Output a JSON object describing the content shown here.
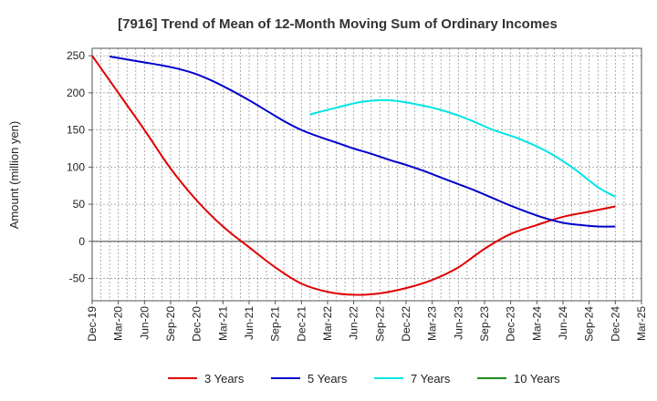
{
  "chart_data": {
    "type": "line",
    "title": "[7916]  Trend of Mean of 12-Month Moving Sum of Ordinary Incomes",
    "xlabel": "",
    "ylabel": "Amount (million yen)",
    "ylim": [
      -80,
      260
    ],
    "yticks": [
      250,
      200,
      150,
      100,
      50,
      0,
      -50
    ],
    "grid": true,
    "legend_position": "bottom",
    "x_tick_labels": [
      "Dec-19",
      "Mar-20",
      "Jun-20",
      "Sep-20",
      "Dec-20",
      "Mar-21",
      "Jun-21",
      "Sep-21",
      "Dec-21",
      "Mar-22",
      "Jun-22",
      "Sep-22",
      "Dec-22",
      "Mar-23",
      "Jun-23",
      "Sep-23",
      "Dec-23",
      "Mar-24",
      "Jun-24",
      "Sep-24",
      "Dec-24",
      "Mar-25"
    ],
    "x_unit": "months since Dec-19",
    "series": [
      {
        "name": "3 Years",
        "color": "#e00000",
        "x": [
          0,
          3,
          6,
          9,
          12,
          15,
          18,
          21,
          24,
          27,
          30,
          33,
          36,
          39,
          42,
          45,
          48,
          51,
          54,
          57,
          60
        ],
        "values": [
          250,
          200,
          150,
          98,
          55,
          20,
          -8,
          -35,
          -57,
          -68,
          -72,
          -70,
          -63,
          -52,
          -35,
          -10,
          10,
          22,
          33,
          40,
          47
        ]
      },
      {
        "name": "5 Years",
        "color": "#0000cc",
        "x": [
          2,
          4,
          6,
          8,
          10,
          12,
          14,
          16,
          18,
          20,
          22,
          24,
          26,
          28,
          30,
          32,
          34,
          36,
          38,
          40,
          42,
          44,
          46,
          48,
          50,
          52,
          54,
          56,
          58,
          60
        ],
        "values": [
          249,
          245,
          241,
          237,
          232,
          225,
          215,
          203,
          190,
          176,
          162,
          150,
          141,
          133,
          125,
          118,
          110,
          103,
          95,
          86,
          77,
          68,
          58,
          48,
          39,
          31,
          25,
          22,
          20,
          20
        ]
      },
      {
        "name": "7 Years",
        "color": "#00e5e5",
        "x": [
          25,
          28,
          31,
          34,
          37,
          40,
          43,
          46,
          49,
          52,
          55,
          58,
          60
        ],
        "values": [
          171,
          180,
          188,
          190,
          185,
          177,
          165,
          150,
          138,
          122,
          100,
          73,
          60
        ]
      },
      {
        "name": "10 Years",
        "color": "#1e8c1e",
        "x": [],
        "values": []
      }
    ]
  }
}
